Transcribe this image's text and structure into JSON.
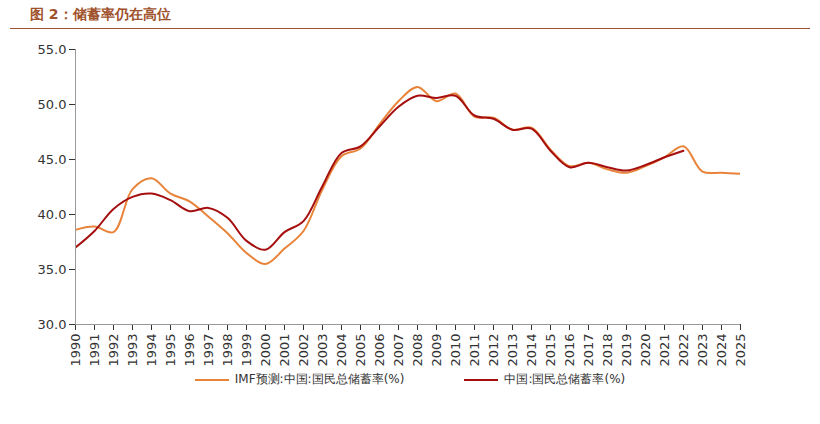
{
  "chart_data": {
    "type": "line",
    "title": "图 2：储蓄率仍在高位",
    "x": [
      1990,
      1991,
      1992,
      1993,
      1994,
      1995,
      1996,
      1997,
      1998,
      1999,
      2000,
      2001,
      2002,
      2003,
      2004,
      2005,
      2006,
      2007,
      2008,
      2009,
      2010,
      2011,
      2012,
      2013,
      2014,
      2015,
      2016,
      2017,
      2018,
      2019,
      2020,
      2021,
      2022,
      2023,
      2024,
      2025
    ],
    "series": [
      {
        "name": "IMF预测:中国:国民总储蓄率(%)",
        "color": "#E8833A",
        "values": [
          38.6,
          38.9,
          38.4,
          42.3,
          43.3,
          41.9,
          41.2,
          39.8,
          38.3,
          36.5,
          35.5,
          36.9,
          38.5,
          42.3,
          45.3,
          46.0,
          48.2,
          50.3,
          51.6,
          50.3,
          51.0,
          48.9,
          48.8,
          47.7,
          47.9,
          45.9,
          44.4,
          44.7,
          44.1,
          43.8,
          44.4,
          45.2,
          46.2,
          43.9,
          43.8,
          43.7
        ]
      },
      {
        "name": "中国:国民总储蓄率(%)",
        "color": "#A50F0F",
        "values": [
          37.0,
          38.5,
          40.5,
          41.6,
          41.9,
          41.3,
          40.3,
          40.6,
          39.7,
          37.6,
          36.8,
          38.4,
          39.4,
          42.6,
          45.6,
          46.2,
          48.0,
          49.8,
          50.8,
          50.6,
          50.8,
          49.0,
          48.7,
          47.7,
          47.8,
          45.8,
          44.3,
          44.7,
          44.3,
          44.0,
          44.5,
          45.2,
          45.8,
          null,
          null,
          null
        ]
      }
    ],
    "xlim": [
      1990,
      2025
    ],
    "xticks": [
      1990,
      1991,
      1992,
      1993,
      1994,
      1995,
      1996,
      1997,
      1998,
      1999,
      2000,
      2001,
      2002,
      2003,
      2004,
      2005,
      2006,
      2007,
      2008,
      2009,
      2010,
      2011,
      2012,
      2013,
      2014,
      2015,
      2016,
      2017,
      2018,
      2019,
      2020,
      2021,
      2022,
      2023,
      2024,
      2025
    ],
    "ylim": [
      30,
      55
    ],
    "yticks": [
      {
        "value": 30,
        "label": "30.0"
      },
      {
        "value": 35,
        "label": "35.0"
      },
      {
        "value": 40,
        "label": "40.0"
      },
      {
        "value": 45,
        "label": "45.0"
      },
      {
        "value": 50,
        "label": "50.0"
      },
      {
        "value": 55,
        "label": "55.0"
      }
    ],
    "grid": false,
    "legend": "bottom"
  }
}
